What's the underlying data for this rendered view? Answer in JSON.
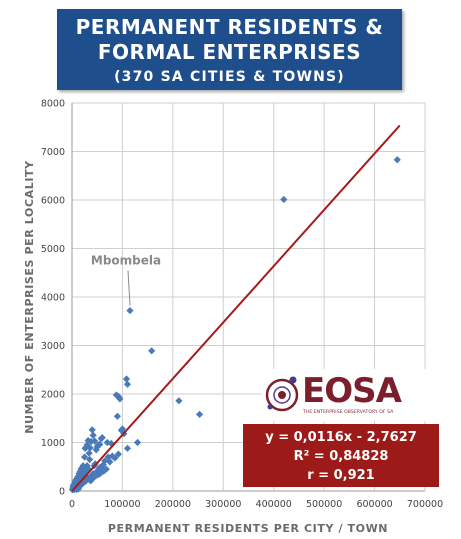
{
  "title": {
    "line1": "PERMANENT RESIDENTS &",
    "line2": "FORMAL ENTERPRISES",
    "subtitle": "(370 SA CITIES & TOWNS)"
  },
  "colors": {
    "title_bg": "#1f4e8c",
    "points": "#4a7ab8",
    "trendline": "#a31b1b",
    "equation_bg": "#9c1b19",
    "logo": "#7a1f2b"
  },
  "logo": {
    "text": "EOSA",
    "tagline": "THE ENTERPRISE OBSERVATORY OF SA"
  },
  "regression": {
    "equation": "y = 0,0116x - 2,7627",
    "r_squared": "R² = 0,84828",
    "r": "r = 0,921"
  },
  "chart_data": {
    "type": "scatter",
    "xlabel": "PERMANENT RESIDENTS PER CITY / TOWN",
    "ylabel": "NUMBER OF ENTERPRISES PER LOCALITY",
    "xlim": [
      0,
      700000
    ],
    "ylim": [
      0,
      8000
    ],
    "xticks": [
      0,
      100000,
      200000,
      300000,
      400000,
      500000,
      600000,
      700000
    ],
    "yticks": [
      0,
      1000,
      2000,
      3000,
      4000,
      5000,
      6000,
      7000,
      8000
    ],
    "grid": true,
    "annotations": [
      {
        "text": "Mbombela",
        "x": 115000,
        "y": 3720
      }
    ],
    "trendline": {
      "slope": 0.0116,
      "intercept": -2.7627,
      "x_range": [
        0,
        650000
      ]
    },
    "points": [
      [
        645000,
        6830
      ],
      [
        420000,
        6010
      ],
      [
        115000,
        3720
      ],
      [
        158000,
        2890
      ],
      [
        108000,
        2310
      ],
      [
        110000,
        2200
      ],
      [
        212000,
        1860
      ],
      [
        253000,
        1580
      ],
      [
        88000,
        1980
      ],
      [
        92000,
        1950
      ],
      [
        95000,
        1900
      ],
      [
        90000,
        1540
      ],
      [
        100000,
        1280
      ],
      [
        98000,
        1250
      ],
      [
        103000,
        1180
      ],
      [
        130000,
        1000
      ],
      [
        110000,
        880
      ],
      [
        92000,
        760
      ],
      [
        80000,
        720
      ],
      [
        78000,
        980
      ],
      [
        70000,
        1000
      ],
      [
        60000,
        1100
      ],
      [
        58000,
        1080
      ],
      [
        55000,
        960
      ],
      [
        52000,
        950
      ],
      [
        50000,
        910
      ],
      [
        48000,
        850
      ],
      [
        45000,
        1030
      ],
      [
        42000,
        1150
      ],
      [
        40000,
        1260
      ],
      [
        38000,
        1020
      ],
      [
        36000,
        890
      ],
      [
        34000,
        780
      ],
      [
        32000,
        1040
      ],
      [
        30000,
        950
      ],
      [
        28000,
        900
      ],
      [
        26000,
        880
      ],
      [
        25000,
        700
      ],
      [
        72000,
        700
      ],
      [
        65000,
        620
      ],
      [
        62000,
        540
      ],
      [
        58000,
        500
      ],
      [
        55000,
        480
      ],
      [
        52000,
        430
      ],
      [
        50000,
        400
      ],
      [
        48000,
        380
      ],
      [
        46000,
        560
      ],
      [
        44000,
        520
      ],
      [
        42000,
        360
      ],
      [
        40000,
        330
      ],
      [
        38000,
        300
      ],
      [
        36000,
        280
      ],
      [
        35000,
        650
      ],
      [
        33000,
        450
      ],
      [
        31000,
        420
      ],
      [
        30000,
        520
      ],
      [
        28000,
        380
      ],
      [
        27000,
        460
      ],
      [
        26000,
        330
      ],
      [
        25000,
        300
      ],
      [
        24000,
        280
      ],
      [
        23000,
        400
      ],
      [
        22000,
        350
      ],
      [
        21000,
        260
      ],
      [
        20000,
        230
      ],
      [
        19000,
        310
      ],
      [
        18000,
        220
      ],
      [
        17000,
        190
      ],
      [
        16000,
        270
      ],
      [
        15000,
        240
      ],
      [
        14000,
        180
      ],
      [
        13000,
        160
      ],
      [
        12000,
        210
      ],
      [
        11000,
        150
      ],
      [
        10000,
        130
      ],
      [
        9500,
        170
      ],
      [
        9000,
        110
      ],
      [
        8500,
        95
      ],
      [
        8000,
        140
      ],
      [
        7500,
        80
      ],
      [
        7000,
        120
      ],
      [
        6500,
        70
      ],
      [
        6000,
        100
      ],
      [
        5500,
        60
      ],
      [
        5000,
        85
      ],
      [
        4500,
        55
      ],
      [
        4000,
        75
      ],
      [
        3500,
        45
      ],
      [
        3000,
        60
      ],
      [
        2500,
        40
      ],
      [
        2000,
        50
      ],
      [
        1500,
        30
      ],
      [
        1000,
        25
      ],
      [
        12000,
        300
      ],
      [
        14000,
        360
      ],
      [
        16000,
        400
      ],
      [
        18000,
        450
      ],
      [
        20000,
        480
      ],
      [
        22000,
        520
      ],
      [
        15000,
        330
      ],
      [
        10000,
        260
      ],
      [
        8000,
        230
      ],
      [
        6000,
        190
      ],
      [
        4000,
        140
      ],
      [
        3000,
        120
      ],
      [
        2000,
        90
      ],
      [
        11000,
        70
      ],
      [
        13000,
        90
      ],
      [
        17000,
        110
      ],
      [
        19000,
        140
      ],
      [
        21000,
        160
      ],
      [
        24000,
        180
      ],
      [
        27000,
        200
      ],
      [
        29000,
        230
      ],
      [
        32000,
        250
      ],
      [
        34000,
        270
      ],
      [
        37000,
        210
      ],
      [
        39000,
        240
      ],
      [
        41000,
        260
      ],
      [
        43000,
        290
      ],
      [
        47000,
        310
      ],
      [
        53000,
        340
      ],
      [
        57000,
        370
      ],
      [
        63000,
        410
      ],
      [
        68000,
        450
      ],
      [
        75000,
        600
      ],
      [
        85000,
        680
      ],
      [
        12500,
        40
      ],
      [
        9000,
        35
      ],
      [
        5000,
        30
      ]
    ]
  }
}
